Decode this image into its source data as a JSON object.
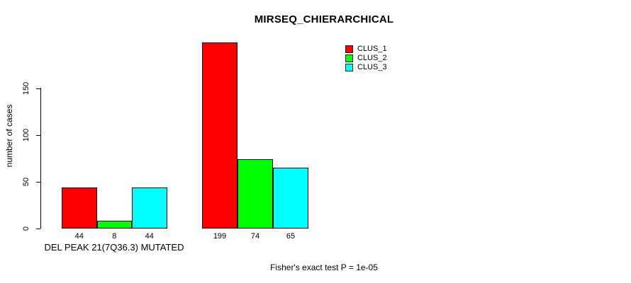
{
  "header": {
    "title": "MIRSEQ_CHIERARCHICAL"
  },
  "footer": {
    "note": "Fisher's exact test P = 1e-05"
  },
  "chart_data": {
    "type": "bar",
    "title": "MIRSEQ_CHIERARCHICAL",
    "xlabel": "",
    "ylabel": "number of cases",
    "yticks": [
      0,
      50,
      100,
      150
    ],
    "ylim": [
      0,
      205
    ],
    "grid": false,
    "legend_position": "top-right",
    "series": [
      {
        "name": "CLUS_1",
        "color": "#FF0000"
      },
      {
        "name": "CLUS_2",
        "color": "#00FF00"
      },
      {
        "name": "CLUS_3",
        "color": "#00FFFF"
      }
    ],
    "groups": [
      {
        "label": "DEL PEAK 21(7Q36.3) MUTATED",
        "values": [
          44,
          8,
          44
        ]
      },
      {
        "label": "",
        "values": [
          199,
          74,
          65
        ]
      }
    ],
    "annotation": "Fisher's exact test P = 1e-05"
  }
}
